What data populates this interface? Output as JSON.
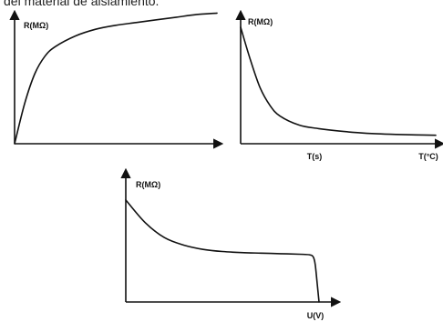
{
  "caption": "del material de aislamiento.",
  "chart_data": [
    {
      "type": "line",
      "title": "",
      "ylabel": "R(MΩ)",
      "xlabel": "",
      "x_tick_labels": [],
      "series": [
        {
          "x": [
            0,
            0.05,
            0.1,
            0.15,
            0.2,
            0.3,
            0.4,
            0.5,
            0.6,
            0.7,
            0.8,
            0.9,
            1.0
          ],
          "values": [
            0,
            0.3,
            0.52,
            0.65,
            0.72,
            0.8,
            0.85,
            0.88,
            0.9,
            0.92,
            0.94,
            0.96,
            0.97
          ]
        }
      ],
      "curve_color": "#111111",
      "axis_color": "#111111",
      "grid": false,
      "legend": "none"
    },
    {
      "type": "line",
      "title": "",
      "ylabel": "R(MΩ)",
      "xlabel": "",
      "x_tick_labels": [
        "T(s)",
        "T(°C)"
      ],
      "series": [
        {
          "x": [
            0,
            0.05,
            0.1,
            0.15,
            0.2,
            0.3,
            0.4,
            0.5,
            0.6,
            0.7,
            0.8,
            0.9,
            1.0
          ],
          "values": [
            1.0,
            0.72,
            0.48,
            0.33,
            0.24,
            0.16,
            0.13,
            0.11,
            0.095,
            0.085,
            0.08,
            0.076,
            0.073
          ]
        }
      ],
      "curve_color": "#111111",
      "axis_color": "#111111",
      "grid": false,
      "legend": "none"
    },
    {
      "type": "line",
      "title": "",
      "ylabel": "R(MΩ)",
      "xlabel": "",
      "x_tick_labels": [
        "U(V)"
      ],
      "series": [
        {
          "x": [
            0,
            0.1,
            0.2,
            0.3,
            0.4,
            0.5,
            0.6,
            0.7,
            0.8,
            0.9,
            0.95,
            0.97,
            0.98,
            0.99,
            1.0
          ],
          "values": [
            0.95,
            0.74,
            0.6,
            0.53,
            0.49,
            0.47,
            0.46,
            0.455,
            0.45,
            0.445,
            0.44,
            0.42,
            0.35,
            0.18,
            0
          ]
        }
      ],
      "curve_color": "#111111",
      "axis_color": "#111111",
      "grid": false,
      "legend": "none"
    }
  ]
}
